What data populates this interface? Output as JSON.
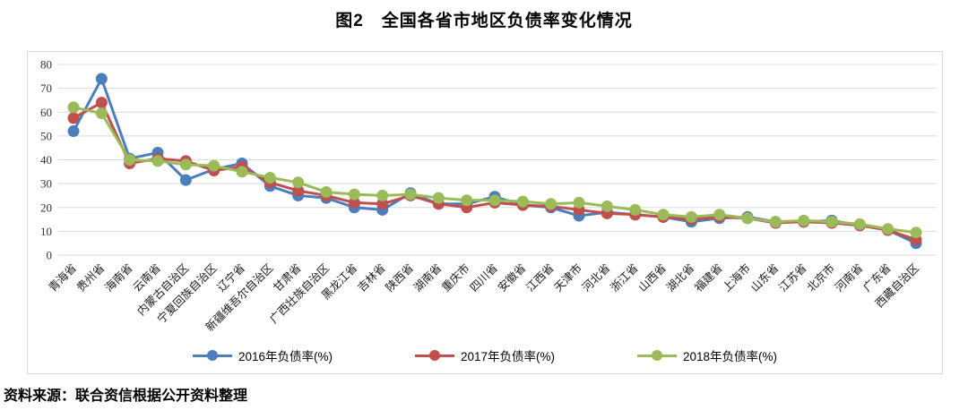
{
  "title": "图2　全国各省市地区负债率变化情况",
  "source": "资料来源：联合资信根据公开资料整理",
  "chart_data": {
    "type": "line",
    "title": "图2　全国各省市地区负债率变化情况",
    "xlabel": "",
    "ylabel": "",
    "ylim": [
      0,
      80
    ],
    "yticks": [
      0,
      10,
      20,
      30,
      40,
      50,
      60,
      70,
      80
    ],
    "grid": true,
    "legend_position": "bottom",
    "categories": [
      "青海省",
      "贵州省",
      "海南省",
      "云南省",
      "内蒙古自治区",
      "宁夏回族自治区",
      "辽宁省",
      "新疆维吾尔自治区",
      "甘肃省",
      "广西壮族自治区",
      "黑龙江省",
      "吉林省",
      "陕西省",
      "湖南省",
      "重庆市",
      "四川省",
      "安徽省",
      "江西省",
      "天津市",
      "河北省",
      "浙江省",
      "山西省",
      "湖北省",
      "福建省",
      "上海市",
      "山东省",
      "江苏省",
      "北京市",
      "河南省",
      "广东省",
      "西藏自治区"
    ],
    "series": [
      {
        "name": "2016年负债率(%)",
        "color": "#4A7EBD",
        "values": [
          52,
          74,
          40.5,
          43,
          31.5,
          36,
          38.5,
          29,
          25,
          24,
          20,
          19,
          26,
          21.5,
          21.5,
          24.5,
          21,
          20,
          16.5,
          18,
          17,
          16,
          14,
          15.5,
          16,
          14,
          14,
          14.5,
          12.5,
          10.5,
          5
        ]
      },
      {
        "name": "2017年负债率(%)",
        "color": "#C0504D",
        "values": [
          57.5,
          64,
          38.5,
          40.5,
          39.5,
          35.5,
          37,
          30.5,
          27,
          25,
          22,
          21.5,
          25,
          21.5,
          20,
          22,
          21,
          20.5,
          19,
          17.5,
          17,
          16,
          15,
          16,
          15.5,
          13.5,
          14,
          13.5,
          12.5,
          10.5,
          6.5
        ]
      },
      {
        "name": "2018年负债率(%)",
        "color": "#9BBB59",
        "values": [
          62,
          59.5,
          40,
          39.5,
          38,
          37.5,
          35,
          32.5,
          30.5,
          26.5,
          25.5,
          25,
          25.5,
          24,
          23,
          23,
          22.5,
          21.5,
          22,
          20.5,
          19,
          17,
          16,
          17,
          15.5,
          14,
          14.5,
          14,
          13,
          11,
          9.5
        ]
      }
    ]
  },
  "style": {
    "grid_color": "#d9d9d9",
    "frame_border_color": "#d6d6d6"
  }
}
